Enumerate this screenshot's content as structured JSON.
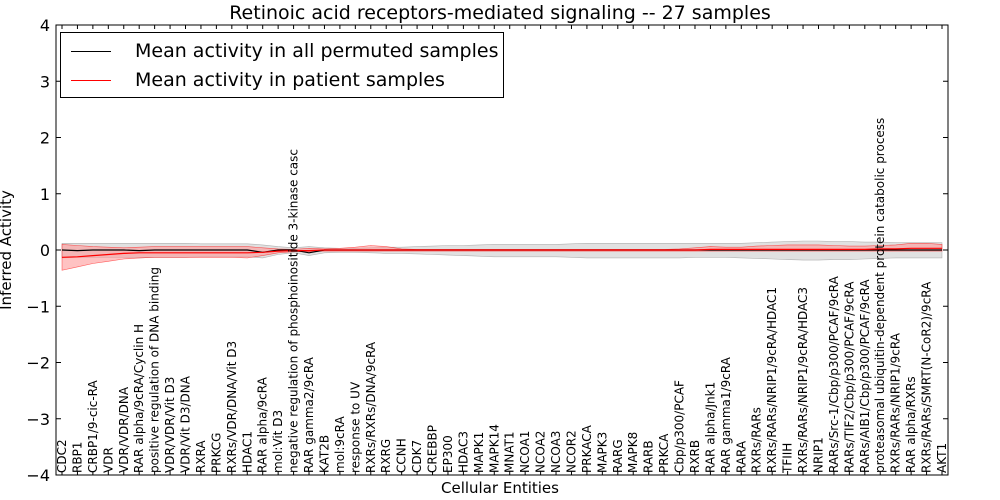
{
  "chart_data": {
    "type": "line",
    "title": "Retinoic acid receptors-mediated signaling -- 27 samples",
    "xlabel": "Cellular Entities",
    "ylabel": "Inferred Activity",
    "ylim": [
      -4,
      4
    ],
    "yticks": [
      "4",
      "3",
      "2",
      "1",
      "0",
      "−1",
      "−2",
      "−3",
      "−4"
    ],
    "legend_position": "top-left",
    "colors": {
      "permuted": "#000000",
      "patient": "#ff0000",
      "patient_band": "#ff9a9a",
      "permuted_band": "#c8c8c8"
    },
    "categories": [
      "CDC2",
      "RBP1",
      "CRBP1/9-cic-RA",
      "VDR",
      "VDR/VDR/DNA",
      "RAR alpha/9cRA/Cyclin H",
      "positive regulation of DNA binding",
      "VDR/VDR/Vit D3",
      "VDR/Vit D3/DNA",
      "RXRA",
      "PRKCG",
      "RXRs/VDR/DNA/Vit D3",
      "HDAC1",
      "RAR alpha/9cRA",
      "mol:Vit D3",
      "negative regulation of phosphoinositide 3-kinase casc",
      "RAR gamma2/9cRA",
      "KAT2B",
      "mol:9cRA",
      "response to UV",
      "RXRs/RXRs/DNA/9cRA",
      "RXRG",
      "CCNH",
      "CDK7",
      "CREBBP",
      "EP300",
      "HDAC3",
      "MAPK1",
      "MAPK14",
      "MNAT1",
      "NCOA1",
      "NCOA2",
      "NCOA3",
      "NCOR2",
      "PRKACA",
      "MAPK3",
      "RARG",
      "MAPK8",
      "RARB",
      "PRKCA",
      "Cbp/p300/PCAF",
      "RXRB",
      "RAR alpha/Jnk1",
      "RAR gamma1/9cRA",
      "RARA",
      "RXRs/RARs",
      "RXRs/RARs/NRIP1/9cRA/HDAC1",
      "TFIIH",
      "RXRs/RARs/NRIP1/9cRA/HDAC3",
      "NRIP1",
      "RARs/Src-1/Cbp/p300/PCAF/9cRA",
      "RARs/TIF2/Cbp/p300/PCAF/9cRA",
      "RARs/AIB1/Cbp/p300/PCAF/9cRA",
      "proteasomal ubiquitin-dependent protein catabolic process",
      "RXRs/RARs/NRIP1/9cRA",
      "RAR alpha/RXRs",
      "RXRs/RARs/SMRT(N-CoR2)/9cRA",
      "AKT1"
    ],
    "series": [
      {
        "name": "Mean activity in all permuted samples",
        "values": [
          0.0,
          -0.01,
          0.0,
          0.0,
          0.0,
          -0.01,
          0.0,
          0.0,
          0.0,
          0.0,
          0.0,
          0.0,
          0.0,
          -0.04,
          0.0,
          0.0,
          -0.05,
          0.0,
          0.0,
          0.0,
          0.0,
          0.0,
          0.0,
          0.0,
          0.0,
          0.0,
          0.0,
          0.0,
          0.0,
          0.0,
          0.0,
          0.0,
          0.0,
          0.0,
          0.0,
          0.0,
          0.0,
          0.0,
          0.0,
          0.0,
          0.0,
          0.0,
          0.0,
          0.0,
          0.0,
          0.0,
          0.0,
          0.0,
          0.0,
          0.0,
          0.0,
          0.0,
          0.0,
          0.0,
          0.0,
          0.0,
          0.0,
          0.0
        ],
        "lower": [
          -0.14,
          -0.13,
          -0.13,
          -0.13,
          -0.13,
          -0.14,
          -0.13,
          -0.13,
          -0.13,
          -0.12,
          -0.12,
          -0.12,
          -0.12,
          -0.14,
          -0.08,
          -0.05,
          -0.1,
          -0.05,
          -0.04,
          -0.04,
          -0.05,
          -0.06,
          -0.06,
          -0.07,
          -0.08,
          -0.09,
          -0.1,
          -0.11,
          -0.12,
          -0.12,
          -0.12,
          -0.12,
          -0.12,
          -0.13,
          -0.14,
          -0.14,
          -0.14,
          -0.14,
          -0.14,
          -0.14,
          -0.14,
          -0.13,
          -0.13,
          -0.13,
          -0.14,
          -0.15,
          -0.16,
          -0.17,
          -0.18,
          -0.18,
          -0.17,
          -0.17,
          -0.16,
          -0.15,
          -0.14,
          -0.14,
          -0.14,
          -0.14
        ],
        "upper": [
          0.12,
          0.12,
          0.12,
          0.12,
          0.12,
          0.12,
          0.12,
          0.12,
          0.12,
          0.11,
          0.11,
          0.11,
          0.11,
          0.09,
          0.06,
          0.04,
          0.06,
          0.04,
          0.03,
          0.03,
          0.04,
          0.05,
          0.05,
          0.06,
          0.07,
          0.08,
          0.08,
          0.09,
          0.1,
          0.1,
          0.1,
          0.1,
          0.1,
          0.11,
          0.12,
          0.12,
          0.12,
          0.12,
          0.12,
          0.12,
          0.12,
          0.12,
          0.12,
          0.12,
          0.12,
          0.13,
          0.14,
          0.15,
          0.16,
          0.16,
          0.15,
          0.15,
          0.14,
          0.14,
          0.13,
          0.13,
          0.13,
          0.13
        ]
      },
      {
        "name": "Mean activity in patient samples",
        "values": [
          -0.13,
          -0.12,
          -0.1,
          -0.08,
          -0.06,
          -0.05,
          -0.05,
          -0.05,
          -0.05,
          -0.05,
          -0.05,
          -0.05,
          -0.05,
          -0.04,
          -0.02,
          -0.01,
          -0.01,
          0.0,
          0.0,
          0.0,
          0.0,
          0.0,
          0.0,
          0.0,
          0.0,
          0.0,
          0.0,
          0.0,
          0.0,
          0.0,
          0.0,
          0.0,
          0.0,
          0.0,
          0.0,
          0.0,
          0.0,
          0.0,
          0.0,
          0.0,
          0.0,
          0.0,
          0.01,
          0.01,
          0.01,
          0.01,
          0.01,
          0.01,
          0.01,
          0.01,
          0.01,
          0.01,
          0.01,
          0.02,
          0.02,
          0.03,
          0.03,
          0.03
        ],
        "lower": [
          -0.36,
          -0.3,
          -0.24,
          -0.2,
          -0.16,
          -0.14,
          -0.13,
          -0.13,
          -0.13,
          -0.13,
          -0.13,
          -0.13,
          -0.14,
          -0.1,
          -0.05,
          -0.03,
          -0.03,
          -0.02,
          -0.02,
          -0.02,
          -0.02,
          -0.02,
          -0.02,
          -0.02,
          -0.02,
          -0.02,
          -0.02,
          -0.02,
          -0.02,
          -0.02,
          -0.02,
          -0.02,
          -0.02,
          -0.02,
          -0.02,
          -0.02,
          -0.02,
          -0.02,
          -0.02,
          -0.02,
          -0.02,
          -0.02,
          -0.02,
          -0.02,
          -0.02,
          -0.02,
          -0.02,
          -0.02,
          -0.02,
          -0.02,
          -0.02,
          -0.02,
          -0.02,
          -0.02,
          -0.02,
          -0.02,
          -0.02,
          -0.02
        ],
        "upper": [
          0.1,
          0.08,
          0.06,
          0.05,
          0.04,
          0.05,
          0.06,
          0.06,
          0.06,
          0.06,
          0.06,
          0.06,
          0.06,
          0.04,
          0.02,
          0.01,
          0.03,
          0.02,
          0.03,
          0.05,
          0.08,
          0.06,
          0.02,
          0.01,
          0.01,
          0.01,
          0.01,
          0.01,
          0.01,
          0.01,
          0.01,
          0.01,
          0.01,
          0.01,
          0.01,
          0.01,
          0.01,
          0.01,
          0.01,
          0.01,
          0.02,
          0.04,
          0.06,
          0.05,
          0.05,
          0.07,
          0.08,
          0.09,
          0.09,
          0.09,
          0.08,
          0.07,
          0.07,
          0.08,
          0.09,
          0.12,
          0.12,
          0.1
        ]
      }
    ]
  }
}
